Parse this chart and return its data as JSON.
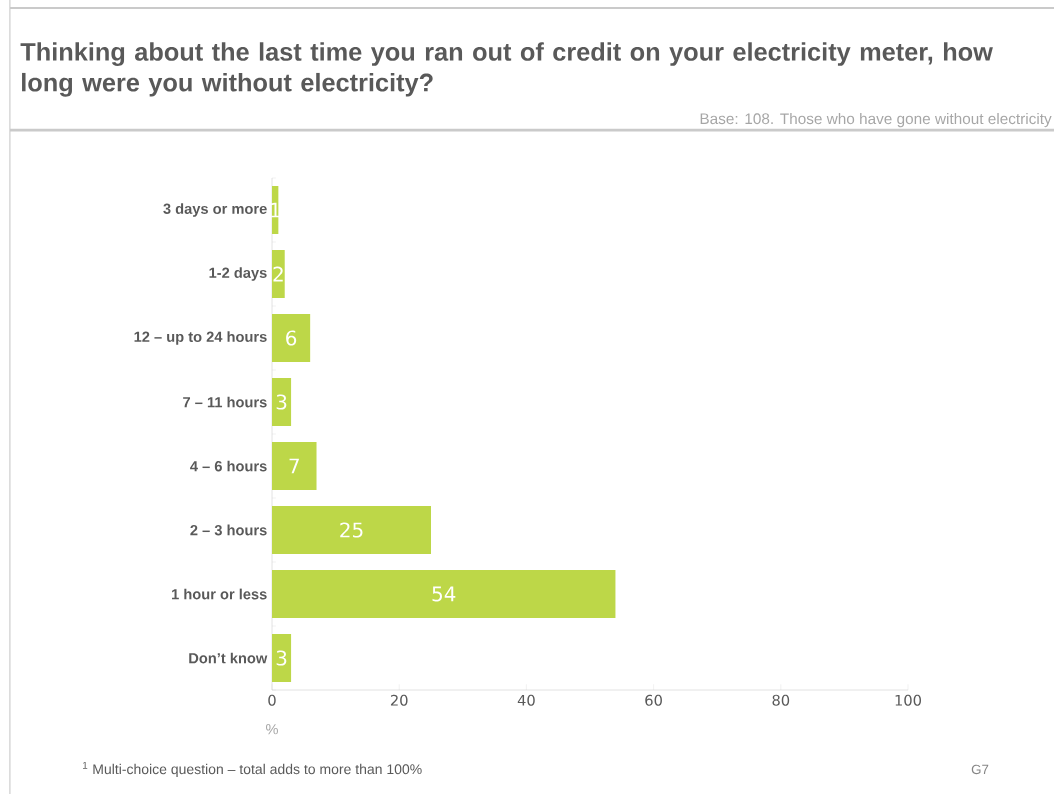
{
  "chart_data": {
    "type": "bar",
    "orientation": "horizontal",
    "title": "Thinking about the last time you ran out of credit on your electricity meter, how long were you without electricity?",
    "categories": [
      "3 days or more",
      "1-2 days",
      "12 – up to 24 hours",
      "7 – 11 hours",
      "4 – 6 hours",
      "2 – 3 hours",
      "1 hour or less",
      "Don’t know"
    ],
    "values": [
      1,
      2,
      6,
      3,
      7,
      25,
      54,
      3
    ],
    "color": "#bdd748",
    "xlim": [
      0,
      100
    ],
    "xticks": [
      0,
      20,
      40,
      60,
      80,
      100
    ],
    "xlabel": "%",
    "data_labels": true,
    "annotations": [
      "Base: 108. Those who have gone without electricity",
      "$^{1}$ Multi-choice question – total adds to more than 100%",
      "G7"
    ]
  }
}
